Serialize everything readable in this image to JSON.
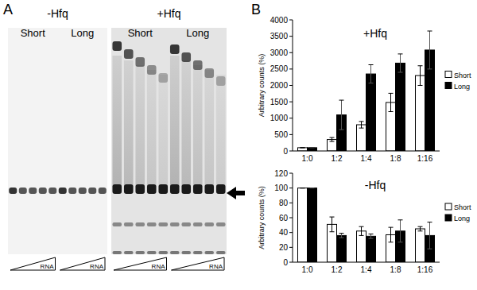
{
  "panels": {
    "A": {
      "label": "A",
      "groups": [
        {
          "title": "-Hfq",
          "lanes": [
            "Short",
            "Long"
          ]
        },
        {
          "title": "+Hfq",
          "lanes": [
            "Short",
            "Long"
          ]
        }
      ],
      "gradient_label": "RNA"
    },
    "B": {
      "label": "B"
    }
  },
  "chart_data": [
    {
      "type": "bar",
      "title": "+Hfq",
      "y_label": "Arbitrary counts (%)",
      "categories": [
        "1:0",
        "1:2",
        "1:4",
        "1:8",
        "1:16"
      ],
      "series": [
        {
          "name": "Short",
          "color": "#ffffff",
          "values": [
            100,
            350,
            800,
            1480,
            2300
          ],
          "errors": [
            0,
            60,
            100,
            280,
            300
          ]
        },
        {
          "name": "Long",
          "color": "#000000",
          "values": [
            100,
            1100,
            2350,
            2680,
            3080
          ],
          "errors": [
            0,
            450,
            280,
            280,
            580
          ]
        }
      ],
      "ylim": [
        0,
        4000
      ],
      "yticks": [
        0,
        500,
        1000,
        1500,
        2000,
        2500,
        3000,
        3500,
        4000
      ],
      "grid": false,
      "legend": "right"
    },
    {
      "type": "bar",
      "title": "-Hfq",
      "y_label": "Arbitrary counts (%)",
      "categories": [
        "1:0",
        "1:2",
        "1:4",
        "1:8",
        "1:16"
      ],
      "series": [
        {
          "name": "Short",
          "color": "#ffffff",
          "values": [
            100,
            51,
            42,
            37,
            45
          ],
          "errors": [
            0,
            10,
            6,
            10,
            3
          ]
        },
        {
          "name": "Long",
          "color": "#000000",
          "values": [
            100,
            36,
            35,
            42,
            36
          ],
          "errors": [
            0,
            3,
            3,
            15,
            18
          ]
        }
      ],
      "ylim": [
        0,
        120
      ],
      "yticks": [
        0,
        20,
        40,
        60,
        80,
        100,
        120
      ],
      "grid": false,
      "legend": "right"
    }
  ]
}
